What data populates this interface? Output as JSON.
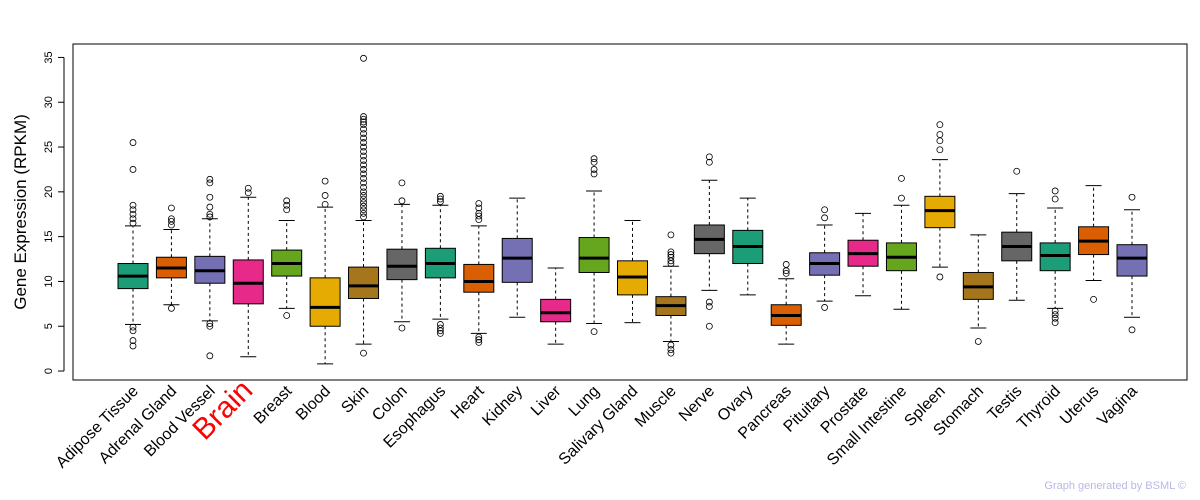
{
  "chart_data": {
    "type": "boxplot",
    "ylabel": "Gene Expression (RPKM)",
    "ylim": [
      -1,
      36.5
    ],
    "yticks": [
      0,
      5,
      10,
      15,
      20,
      25,
      30,
      35
    ],
    "highlighted_category": "Brain",
    "highlight_color": "#ff0000",
    "credit": "Graph generated by BSML ©",
    "boxes": [
      {
        "name": "Adipose Tissue",
        "q1": 9.2,
        "median": 10.6,
        "q3": 12.0,
        "lo": 5.2,
        "hi": 16.2,
        "color": "#1b9e77",
        "outliers": [
          2.8,
          3.4,
          4.5,
          4.9,
          16.5,
          17.0,
          17.5,
          18.0,
          18.5,
          22.5,
          25.5
        ]
      },
      {
        "name": "Adrenal Gland",
        "q1": 10.4,
        "median": 11.5,
        "q3": 12.7,
        "lo": 7.4,
        "hi": 15.8,
        "color": "#d95f02",
        "outliers": [
          7.0,
          16.3,
          16.7,
          17.0,
          18.2
        ]
      },
      {
        "name": "Blood Vessel",
        "q1": 9.8,
        "median": 11.2,
        "q3": 12.8,
        "lo": 5.6,
        "hi": 17.0,
        "color": "#7570b3",
        "outliers": [
          1.7,
          5.0,
          5.3,
          17.2,
          17.5,
          18.3,
          19.4,
          21.0,
          21.4
        ]
      },
      {
        "name": "Brain",
        "q1": 7.5,
        "median": 9.8,
        "q3": 12.4,
        "lo": 1.6,
        "hi": 19.4,
        "color": "#e7298a",
        "outliers": [
          19.9,
          20.4
        ]
      },
      {
        "name": "Breast",
        "q1": 10.6,
        "median": 12.0,
        "q3": 13.5,
        "lo": 7.0,
        "hi": 16.8,
        "color": "#66a61e",
        "outliers": [
          6.2,
          18.0,
          18.5,
          19.0
        ]
      },
      {
        "name": "Blood",
        "q1": 5.0,
        "median": 7.1,
        "q3": 10.4,
        "lo": 0.8,
        "hi": 18.3,
        "color": "#e6ab02",
        "outliers": [
          18.6,
          19.6,
          21.2
        ]
      },
      {
        "name": "Skin",
        "q1": 8.1,
        "median": 9.5,
        "q3": 11.6,
        "lo": 3.0,
        "hi": 16.8,
        "color": "#a6761d",
        "outliers": [
          2.0,
          17.2,
          17.6,
          18.0,
          18.4,
          18.8,
          19.2,
          19.6,
          20.0,
          20.5,
          21.0,
          21.5,
          22.0,
          22.5,
          23.0,
          23.5,
          24.0,
          24.5,
          25.0,
          25.5,
          26.0,
          26.5,
          27.0,
          27.5,
          27.8,
          28.1,
          28.4,
          34.9
        ]
      },
      {
        "name": "Colon",
        "q1": 10.2,
        "median": 11.7,
        "q3": 13.6,
        "lo": 5.5,
        "hi": 18.6,
        "color": "#666666",
        "outliers": [
          4.8,
          19.0,
          21.0
        ]
      },
      {
        "name": "Esophagus",
        "q1": 10.4,
        "median": 12.0,
        "q3": 13.7,
        "lo": 5.8,
        "hi": 18.5,
        "color": "#1b9e77",
        "outliers": [
          4.2,
          4.5,
          4.8,
          5.2,
          18.9,
          19.2,
          19.5
        ]
      },
      {
        "name": "Heart",
        "q1": 8.8,
        "median": 10.0,
        "q3": 11.9,
        "lo": 4.2,
        "hi": 16.2,
        "color": "#d95f02",
        "outliers": [
          3.2,
          3.5,
          3.8,
          16.9,
          17.3,
          17.6,
          18.2,
          18.7
        ]
      },
      {
        "name": "Kidney",
        "q1": 9.9,
        "median": 12.6,
        "q3": 14.8,
        "lo": 6.0,
        "hi": 19.3,
        "color": "#7570b3",
        "outliers": []
      },
      {
        "name": "Liver",
        "q1": 5.5,
        "median": 6.5,
        "q3": 8.0,
        "lo": 3.0,
        "hi": 11.5,
        "color": "#e7298a",
        "outliers": []
      },
      {
        "name": "Lung",
        "q1": 11.0,
        "median": 12.6,
        "q3": 14.9,
        "lo": 5.3,
        "hi": 20.1,
        "color": "#66a61e",
        "outliers": [
          4.4,
          22.0,
          22.5,
          23.3,
          23.7
        ]
      },
      {
        "name": "Salivary Gland",
        "q1": 8.5,
        "median": 10.5,
        "q3": 12.3,
        "lo": 5.4,
        "hi": 16.8,
        "color": "#e6ab02",
        "outliers": []
      },
      {
        "name": "Muscle",
        "q1": 6.2,
        "median": 7.3,
        "q3": 8.3,
        "lo": 3.3,
        "hi": 11.7,
        "color": "#a6761d",
        "outliers": [
          2.0,
          2.4,
          2.9,
          12.0,
          12.3,
          12.7,
          13.0,
          13.3,
          15.2
        ]
      },
      {
        "name": "Nerve",
        "q1": 13.1,
        "median": 14.7,
        "q3": 16.3,
        "lo": 9.0,
        "hi": 21.3,
        "color": "#666666",
        "outliers": [
          5.0,
          7.2,
          7.7,
          23.3,
          23.9
        ]
      },
      {
        "name": "Ovary",
        "q1": 12.0,
        "median": 13.9,
        "q3": 15.7,
        "lo": 8.5,
        "hi": 19.3,
        "color": "#1b9e77",
        "outliers": []
      },
      {
        "name": "Pancreas",
        "q1": 5.1,
        "median": 6.2,
        "q3": 7.4,
        "lo": 3.0,
        "hi": 10.3,
        "color": "#d95f02",
        "outliers": [
          10.9,
          11.2,
          11.9
        ]
      },
      {
        "name": "Pituitary",
        "q1": 10.7,
        "median": 12.0,
        "q3": 13.2,
        "lo": 7.8,
        "hi": 16.3,
        "color": "#7570b3",
        "outliers": [
          7.1,
          17.1,
          18.0
        ]
      },
      {
        "name": "Prostate",
        "q1": 11.7,
        "median": 13.1,
        "q3": 14.6,
        "lo": 8.4,
        "hi": 17.6,
        "color": "#e7298a",
        "outliers": []
      },
      {
        "name": "Small Intestine",
        "q1": 11.2,
        "median": 12.7,
        "q3": 14.3,
        "lo": 6.9,
        "hi": 18.5,
        "color": "#66a61e",
        "outliers": [
          19.3,
          21.5
        ]
      },
      {
        "name": "Spleen",
        "q1": 16.0,
        "median": 17.9,
        "q3": 19.5,
        "lo": 11.6,
        "hi": 23.6,
        "color": "#e6ab02",
        "outliers": [
          10.5,
          24.7,
          25.7,
          26.4,
          27.5
        ]
      },
      {
        "name": "Stomach",
        "q1": 8.0,
        "median": 9.4,
        "q3": 11.0,
        "lo": 4.8,
        "hi": 15.2,
        "color": "#a6761d",
        "outliers": [
          3.3
        ]
      },
      {
        "name": "Testis",
        "q1": 12.3,
        "median": 13.9,
        "q3": 15.5,
        "lo": 7.9,
        "hi": 19.8,
        "color": "#666666",
        "outliers": [
          22.3
        ]
      },
      {
        "name": "Thyroid",
        "q1": 11.2,
        "median": 12.9,
        "q3": 14.3,
        "lo": 7.0,
        "hi": 18.2,
        "color": "#1b9e77",
        "outliers": [
          5.4,
          5.9,
          6.3,
          6.7,
          19.2,
          20.1
        ]
      },
      {
        "name": "Uterus",
        "q1": 13.0,
        "median": 14.5,
        "q3": 16.1,
        "lo": 10.1,
        "hi": 20.7,
        "color": "#d95f02",
        "outliers": [
          8.0
        ]
      },
      {
        "name": "Vagina",
        "q1": 10.6,
        "median": 12.6,
        "q3": 14.1,
        "lo": 6.0,
        "hi": 18.0,
        "color": "#7570b3",
        "outliers": [
          4.6,
          19.4
        ]
      }
    ]
  }
}
